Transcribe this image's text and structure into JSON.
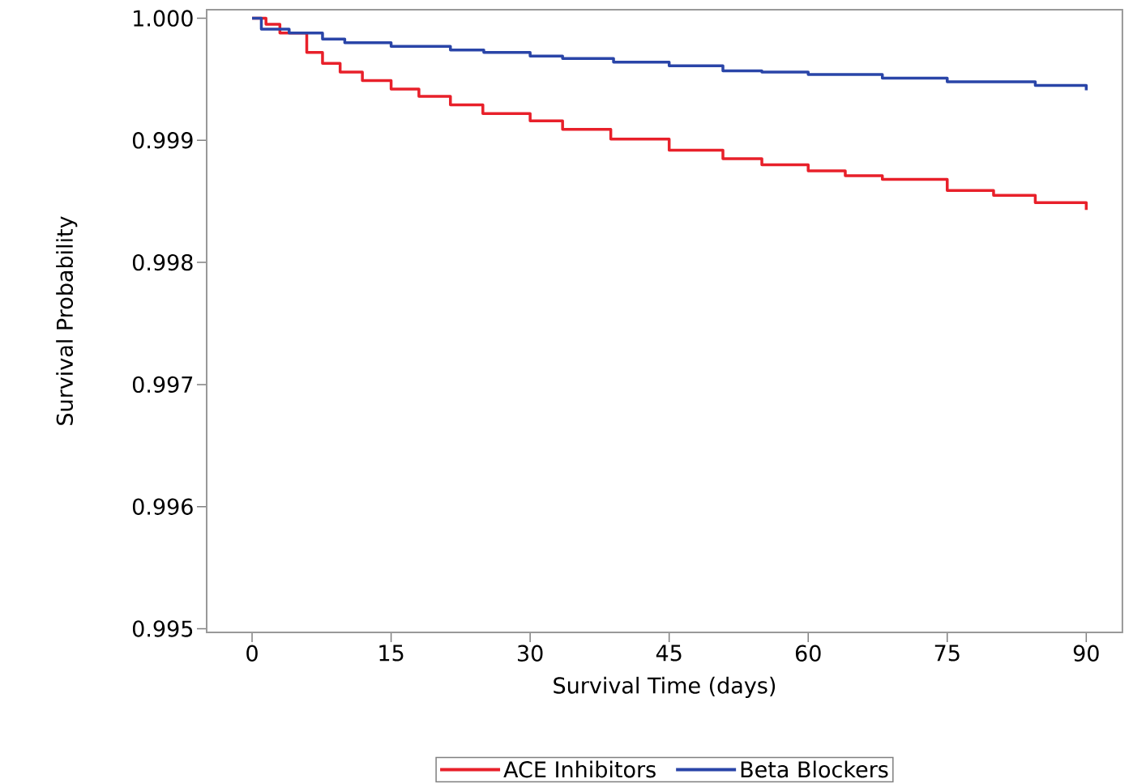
{
  "chart_data": {
    "type": "step",
    "xlabel": "Survival Time (days)",
    "ylabel": "Survival Probability",
    "xlim": [
      -4.9,
      93.9
    ],
    "ylim": [
      0.99497,
      1.00007
    ],
    "xticks": [
      0,
      15,
      30,
      45,
      60,
      75,
      90
    ],
    "yticks": [
      0.995,
      0.996,
      0.997,
      0.998,
      0.999,
      {
        "value": 1.0,
        "label": "1.000"
      }
    ],
    "legend": "bottom",
    "grid": false,
    "line_style": "solid",
    "marker": "none",
    "series": [
      {
        "name": "ACE Inhibitors",
        "color": "#e8202a",
        "x": [
          0,
          1.5,
          3,
          5.9,
          7.6,
          9.5,
          11.9,
          15,
          18,
          21.4,
          24.9,
          30,
          33.5,
          38.7,
          45,
          50.8,
          55,
          60,
          64,
          68,
          75,
          80,
          84.5,
          90
        ],
        "values": [
          1.0,
          0.99995,
          0.99988,
          0.99972,
          0.99963,
          0.99956,
          0.99949,
          0.99942,
          0.99936,
          0.99929,
          0.99922,
          0.99916,
          0.99909,
          0.99901,
          0.99892,
          0.99885,
          0.9988,
          0.99875,
          0.99871,
          0.99868,
          0.99859,
          0.99855,
          0.99849,
          0.99843
        ]
      },
      {
        "name": "Beta Blockers",
        "color": "#2a45a8",
        "x": [
          0,
          1,
          4,
          7.6,
          10,
          15,
          21.4,
          25,
          30,
          33.5,
          39,
          45,
          50.8,
          55,
          60,
          68,
          75,
          84.5,
          90
        ],
        "values": [
          1.0,
          0.99991,
          0.99988,
          0.99983,
          0.9998,
          0.99977,
          0.99974,
          0.99972,
          0.99969,
          0.99967,
          0.99964,
          0.99961,
          0.99957,
          0.99956,
          0.99954,
          0.99951,
          0.99948,
          0.99945,
          0.99941
        ]
      }
    ]
  }
}
